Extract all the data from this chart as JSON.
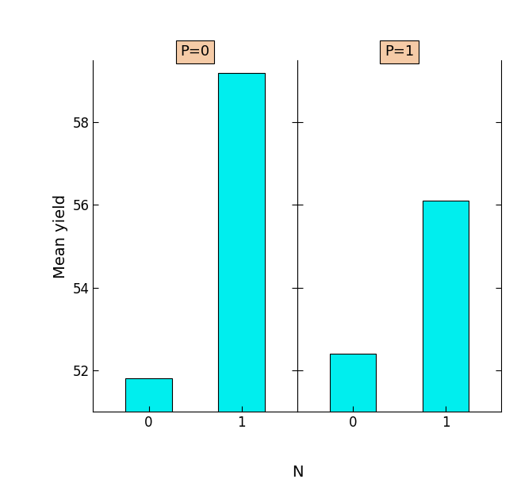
{
  "panels": [
    "P=0",
    "P=1"
  ],
  "x_labels": [
    "0",
    "1"
  ],
  "values": {
    "P=0": [
      51.8,
      59.2
    ],
    "P=1": [
      52.4,
      56.1
    ]
  },
  "bar_color": "#00EEEE",
  "bar_edgecolor": "#000000",
  "panel_header_color": "#F5CBA7",
  "panel_header_edgecolor": "#000000",
  "xlabel": "N",
  "ylabel": "Mean yield",
  "ylim": [
    51,
    59.5
  ],
  "yticks": [
    52,
    54,
    56,
    58
  ],
  "background_color": "#ffffff",
  "panel_bg_color": "#ffffff",
  "bar_width": 0.5,
  "title_fontsize": 14,
  "axis_fontsize": 14,
  "tick_fontsize": 12,
  "panel_label_fontsize": 13
}
